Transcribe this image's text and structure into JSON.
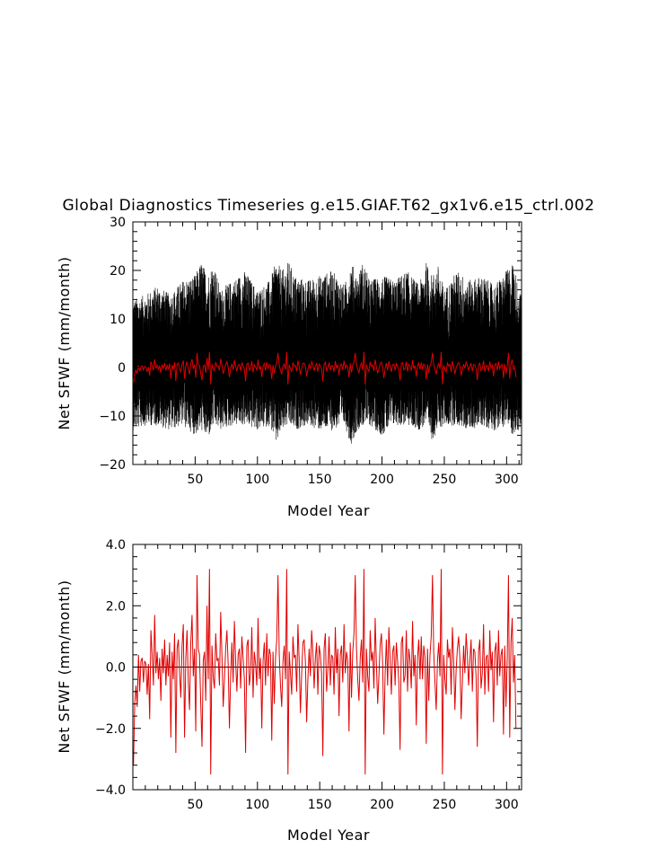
{
  "chart_data": [
    {
      "type": "line",
      "title": "Global Diagnostics Timeseries g.e15.GIAF.T62_gx1v6.e15_ctrl.002",
      "xlabel": "Model Year",
      "ylabel": "Net SFWF (mm/month)",
      "xlim": [
        0,
        312
      ],
      "ylim": [
        -20,
        30
      ],
      "x_ticks": [
        50,
        100,
        150,
        200,
        250,
        300
      ],
      "y_ticks": [
        -20,
        -10,
        0,
        10,
        20,
        30
      ],
      "x_tick_labels": [
        "50",
        "100",
        "150",
        "200",
        "250",
        "300"
      ],
      "y_tick_labels": [
        "−20",
        "−10",
        "0",
        "10",
        "20",
        "30"
      ],
      "series": [
        {
          "color": "#000000",
          "sampling": "monthly",
          "envelope": {
            "x": [
              0,
              10,
              20,
              30,
              40,
              50,
              55,
              60,
              65,
              70,
              80,
              90,
              100,
              110,
              115,
              120,
              125,
              130,
              140,
              150,
              160,
              170,
              175,
              180,
              185,
              190,
              200,
              210,
              220,
              230,
              235,
              240,
              245,
              250,
              260,
              270,
              280,
              290,
              300,
              305,
              310,
              312
            ],
            "upper": [
              14,
              15,
              17,
              15,
              18,
              19,
              22,
              19,
              22,
              16,
              18,
              20,
              16,
              18,
              22,
              20,
              22,
              19,
              18,
              19,
              20,
              17,
              22,
              19,
              22,
              18,
              19,
              18,
              20,
              17,
              22,
              19,
              21,
              16,
              20,
              18,
              19,
              17,
              20,
              22,
              16,
              15
            ],
            "lower": [
              -13,
              -12,
              -12,
              -13,
              -12,
              -14,
              -13,
              -15,
              -12,
              -13,
              -12,
              -12,
              -13,
              -12,
              -16,
              -13,
              -12,
              -13,
              -12,
              -13,
              -13,
              -12,
              -16,
              -13,
              -12,
              -12,
              -14,
              -12,
              -12,
              -13,
              -12,
              -15,
              -13,
              -12,
              -12,
              -13,
              -12,
              -13,
              -12,
              -14,
              -13,
              -12
            ]
          }
        },
        {
          "color": "#e00000",
          "sampling": "annual mean",
          "values": [
            -3.2,
            -1.2,
            -0.6,
            -1.3,
            0.4,
            -0.8,
            0.2,
            0.3,
            -0.5,
            0.2,
            0.1,
            -0.9,
            0.1,
            -1.7,
            1.2,
            0.4,
            -0.6,
            1.7,
            -0.2,
            0.5,
            -0.4,
            0.3,
            -1.1,
            0.6,
            -0.2,
            0.9,
            -0.6,
            0.4,
            -0.3,
            0.8,
            -2.3,
            0.5,
            -0.4,
            1.1,
            -2.8,
            0.6,
            0.9,
            -0.2,
            -1.0,
            0.7,
            1.4,
            -2.3,
            0.3,
            1.2,
            -0.5,
            -1.4,
            0.8,
            1.7,
            -0.3,
            0.6,
            -2.1,
            3.0,
            0.6,
            0.4,
            -1.2,
            -2.6,
            0.2,
            0.5,
            -1.1,
            2.0,
            -0.4,
            3.2,
            -3.5,
            0.7,
            -0.3,
            -0.7,
            1.1,
            0.2,
            0.3,
            -0.6,
            1.8,
            0.4,
            -1.3,
            -0.4,
            0.6,
            1.2,
            0.1,
            -2.0,
            -0.3,
            0.8,
            -0.5,
            1.5,
            0.2,
            -0.8,
            0.4,
            0.6,
            -0.7,
            1.0,
            0.3,
            -0.4,
            -2.8,
            0.7,
            0.9,
            -0.6,
            -0.2,
            1.3,
            -1.0,
            0.5,
            0.1,
            -0.6,
            1.6,
            -0.4,
            0.3,
            -2.0,
            0.2,
            0.8,
            -0.6,
            1.1,
            -0.3,
            0.6,
            0.4,
            -2.4,
            0.5,
            -1.2,
            0.3,
            0.9,
            3.0,
            0.4,
            -0.6,
            -1.3,
            0.2,
            0.7,
            -0.4,
            3.2,
            -3.5,
            0.5,
            -0.2,
            -0.9,
            1.0,
            0.3,
            0.4,
            -0.8,
            1.4,
            0.2,
            -1.5,
            -0.2,
            0.8,
            0.9,
            0.2,
            -1.8,
            -0.4,
            0.6,
            -0.3,
            1.2,
            0.5,
            -0.7,
            0.3,
            0.8,
            -0.9,
            0.7,
            0.4,
            -0.2,
            -2.9,
            0.6,
            1.1,
            -0.8,
            -0.1,
            1.0,
            -0.6,
            0.4,
            0.3,
            -0.9,
            1.3,
            -0.2,
            0.6,
            -1.6,
            0.4,
            0.7,
            -0.5,
            1.4,
            -0.2,
            0.5,
            0.2,
            -2.1,
            0.8,
            -1.0,
            0.5,
            1.1,
            3.0,
            0.6,
            -0.4,
            -1.1,
            0.3,
            0.9,
            -0.5,
            3.2,
            -3.5,
            0.6,
            -0.3,
            -0.8,
            1.2,
            0.2,
            0.5,
            -0.7,
            1.6,
            0.1,
            -1.2,
            -0.3,
            0.7,
            1.1,
            0.1,
            -2.2,
            -0.2,
            0.9,
            -0.6,
            1.3,
            0.3,
            -0.9,
            0.5,
            0.7,
            -0.6,
            0.8,
            0.2,
            -0.5,
            -2.7,
            0.8,
            1.0,
            -0.5,
            -0.3,
            1.2,
            -0.8,
            0.6,
            0.2,
            -0.7,
            1.5,
            -0.3,
            0.4,
            -1.9,
            0.3,
            0.9,
            -0.4,
            1.0,
            -0.4,
            0.7,
            0.3,
            -2.5,
            0.6,
            -1.1,
            0.4,
            1.0,
            3.0,
            0.5,
            -0.5,
            -1.4,
            0.2,
            0.8,
            -0.3,
            3.2,
            -3.5,
            0.4,
            -0.4,
            -0.9,
            0.9,
            0.3,
            0.6,
            -0.9,
            1.3,
            0.2,
            -1.4,
            -0.1,
            0.6,
            1.0,
            0.3,
            -1.7,
            -0.5,
            0.7,
            -0.2,
            1.1,
            0.4,
            -0.6,
            0.2,
            0.9,
            -0.8,
            0.6,
            0.5,
            -0.3,
            -2.6,
            0.5,
            0.9,
            -0.7,
            -0.2,
            1.4,
            -0.9,
            0.3,
            0.4,
            -0.8,
            1.2,
            -0.1,
            0.5,
            -1.8,
            0.5,
            0.8,
            -0.6,
            1.2,
            -0.3,
            0.4,
            0.6,
            -2.2,
            0.7,
            -1.3,
            0.3,
            3.0,
            -2.3,
            0.8,
            1.6,
            -0.5,
            0.4,
            -2.0
          ]
        }
      ]
    },
    {
      "type": "line",
      "xlabel": "Model Year",
      "ylabel": "Net SFWF (mm/month)",
      "xlim": [
        0,
        312
      ],
      "ylim": [
        -4.0,
        4.0
      ],
      "x_ticks": [
        50,
        100,
        150,
        200,
        250,
        300
      ],
      "y_ticks": [
        -4.0,
        -2.0,
        0.0,
        2.0,
        4.0
      ],
      "x_tick_labels": [
        "50",
        "100",
        "150",
        "200",
        "250",
        "300"
      ],
      "y_tick_labels": [
        "−4.0",
        "−2.0",
        "0.0",
        "2.0",
        "4.0"
      ],
      "reference_line": 0.0,
      "series": [
        {
          "color": "#e00000",
          "sampling": "annual mean",
          "values_ref": "same as upper chart annual mean"
        }
      ]
    }
  ]
}
